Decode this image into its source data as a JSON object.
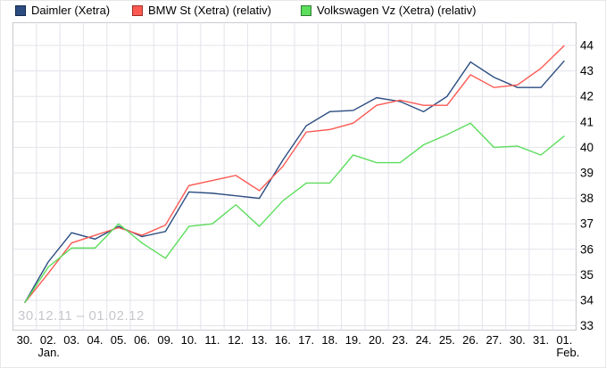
{
  "watermark": "30.12.11 – 01.02.12",
  "chart_data": {
    "type": "line",
    "title": "",
    "xlabel": "",
    "ylabel": "",
    "grid": true,
    "legend_position": "top",
    "ylim": [
      32.8,
      44.9
    ],
    "y_ticks": [
      33,
      34,
      35,
      36,
      37,
      38,
      39,
      40,
      41,
      42,
      43,
      44
    ],
    "categories": [
      "30.",
      "02.",
      "03.",
      "04.",
      "05.",
      "06.",
      "09.",
      "10.",
      "11.",
      "12.",
      "13.",
      "16.",
      "17.",
      "18.",
      "19.",
      "20.",
      "23.",
      "24.",
      "25.",
      "26.",
      "27.",
      "30.",
      "31.",
      "01."
    ],
    "x_month_labels": [
      {
        "label": "Jan.",
        "index": 0
      },
      {
        "label": "Feb.",
        "index": 23
      }
    ],
    "series": [
      {
        "id": "daimler",
        "name": "Daimler (Xetra)",
        "color": "#2b4c80",
        "swatch_border": "#14284d",
        "values": [
          33.9,
          35.5,
          36.65,
          36.4,
          36.9,
          36.5,
          36.7,
          38.25,
          38.2,
          38.1,
          38.0,
          39.5,
          40.85,
          41.4,
          41.45,
          41.95,
          41.8,
          41.4,
          42.0,
          43.35,
          42.75,
          42.35,
          42.35,
          43.4
        ]
      },
      {
        "id": "bmw",
        "name": "BMW St (Xetra) (relativ)",
        "color": "#fb5a53",
        "swatch_border": "#a02c24",
        "values": [
          33.9,
          35.05,
          36.25,
          36.55,
          36.85,
          36.55,
          36.95,
          38.5,
          38.7,
          38.9,
          38.3,
          39.25,
          40.6,
          40.7,
          40.95,
          41.65,
          41.85,
          41.65,
          41.65,
          42.85,
          42.35,
          42.45,
          43.1,
          44.0
        ]
      },
      {
        "id": "volkswagen",
        "name": "Volkswagen Vz (Xetra) (relativ)",
        "color": "#5cdd5c",
        "swatch_border": "#2e7d32",
        "values": [
          33.9,
          35.3,
          36.05,
          36.05,
          37.0,
          36.25,
          35.65,
          36.9,
          37.0,
          37.75,
          36.9,
          37.9,
          38.6,
          38.6,
          39.7,
          39.4,
          39.4,
          40.1,
          40.5,
          40.95,
          40.0,
          40.05,
          39.7,
          40.45
        ]
      }
    ]
  }
}
